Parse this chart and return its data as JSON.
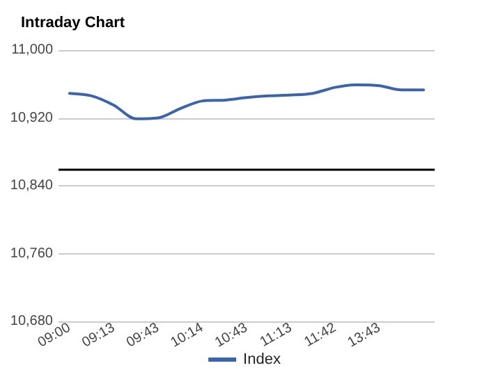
{
  "chart_data": {
    "type": "line",
    "title": "Intraday Chart",
    "categories": [
      "09:00",
      null,
      "09:13",
      null,
      "09:43",
      null,
      "10:14",
      null,
      "10:43",
      null,
      "11:13",
      null,
      "11:42",
      null,
      "13:43",
      null,
      null
    ],
    "series": [
      {
        "name": "Index",
        "color": "#3a63b0",
        "values": [
          10949,
          10946,
          10935,
          10919,
          10920,
          10931,
          10940,
          10941,
          10944,
          10946,
          10947,
          10949,
          10956,
          10959,
          10958,
          10953,
          10953
        ]
      }
    ],
    "ylim": [
      10680,
      11000
    ],
    "yticks": [
      {
        "value": 10680,
        "label": "10,680"
      },
      {
        "value": 10760,
        "label": "10,760"
      },
      {
        "value": 10840,
        "label": "10,840"
      },
      {
        "value": 10920,
        "label": "10,920"
      },
      {
        "value": 11000,
        "label": "11,000"
      }
    ],
    "ref_lines": [
      {
        "axis": "y",
        "value": 10860,
        "color": "#000000"
      }
    ],
    "grid": "y",
    "legend": "bottom",
    "marker": "none",
    "line_style": "solid"
  }
}
